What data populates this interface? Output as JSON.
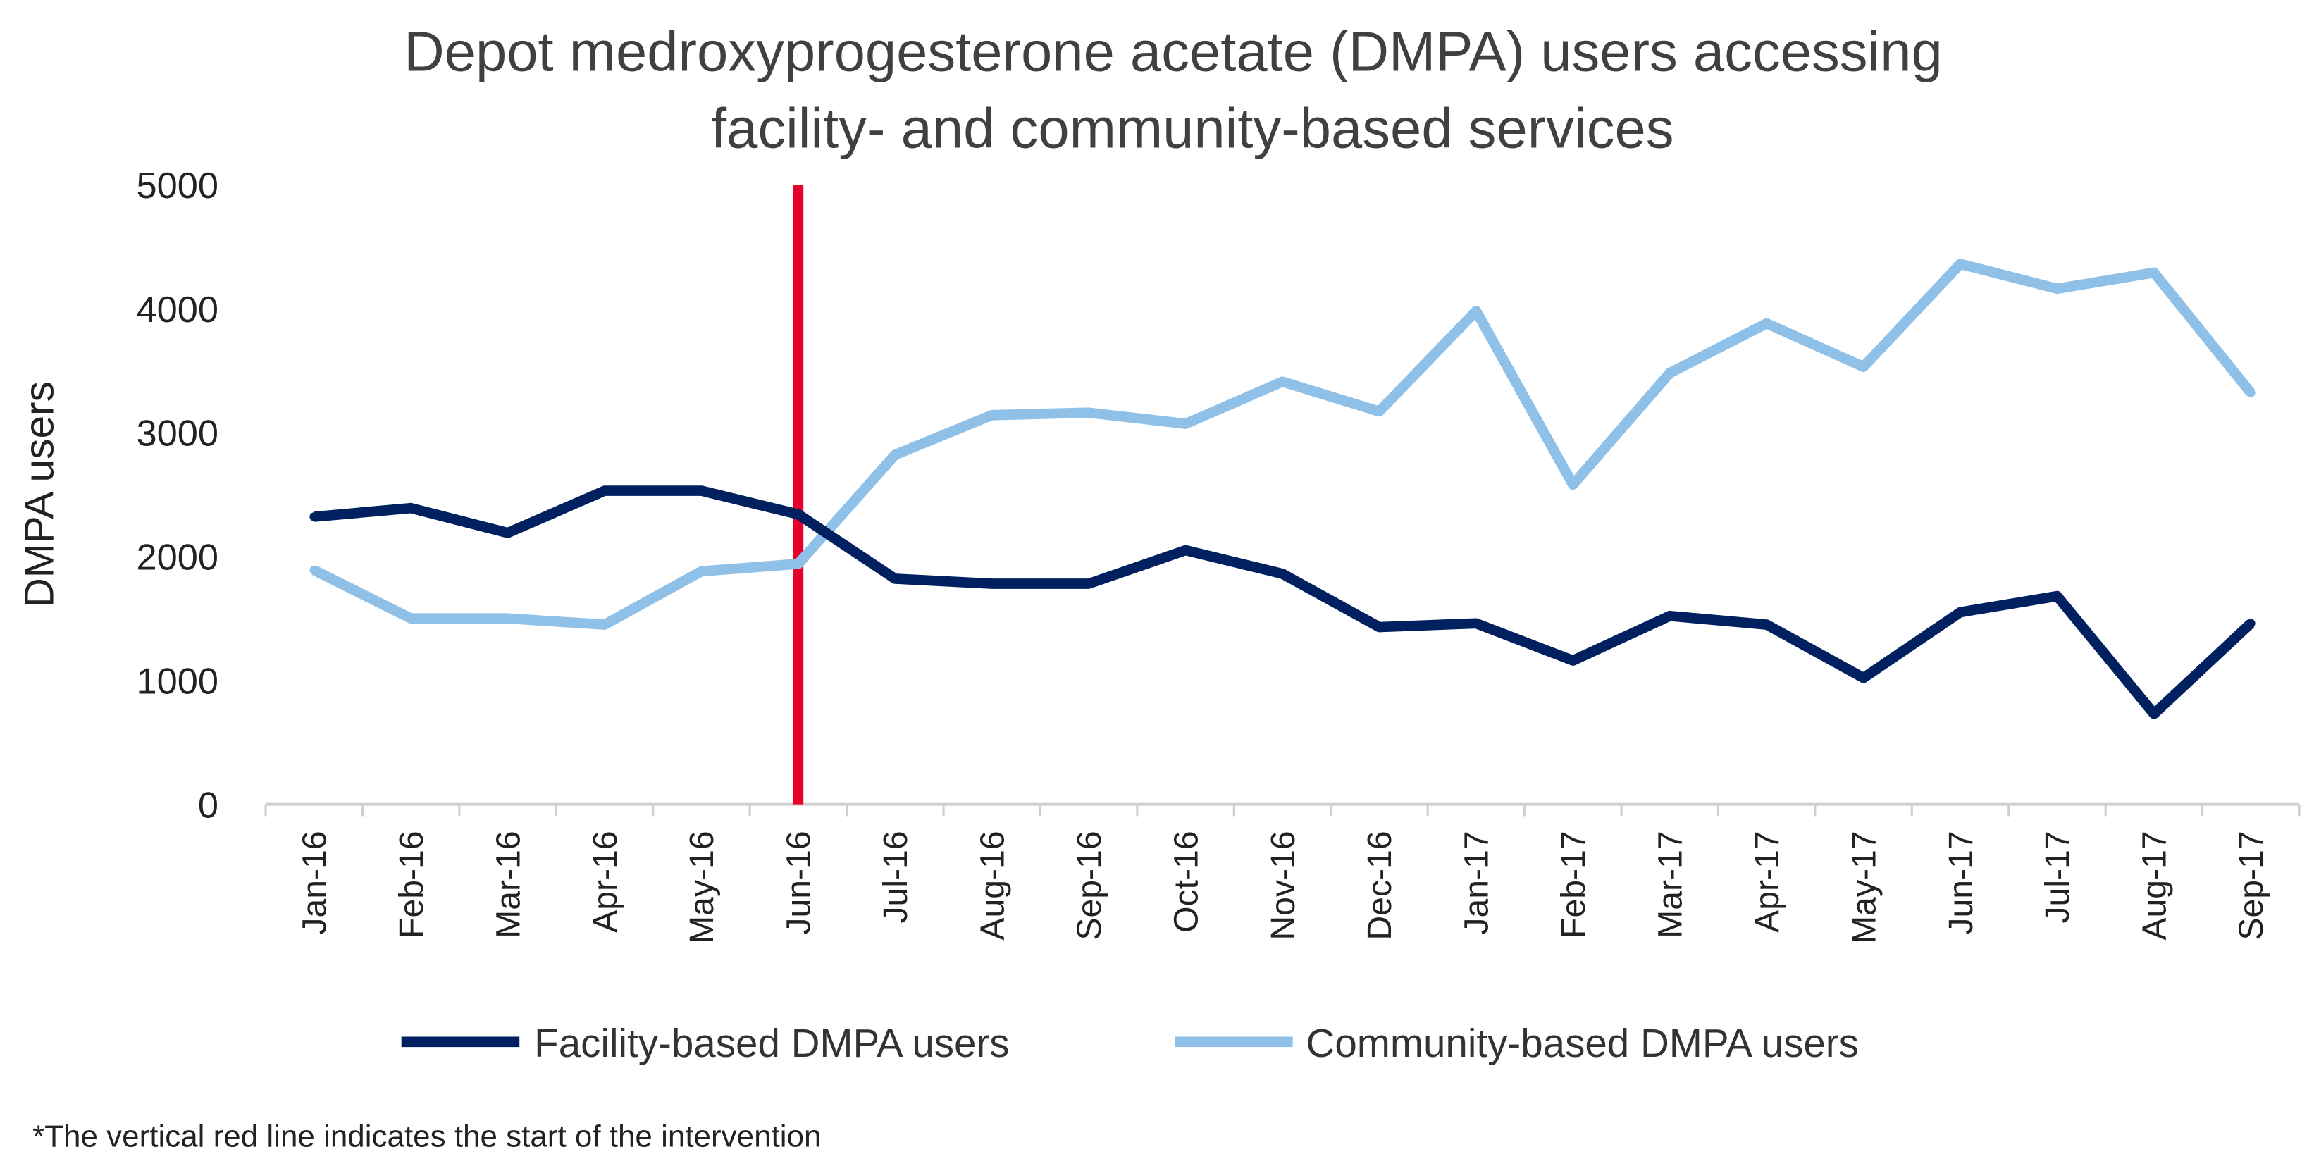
{
  "chart_data": {
    "type": "line",
    "title": [
      "Depot medroxyprogesterone acetate (DMPA) users accessing",
      "facility- and community-based services"
    ],
    "xlabel": "",
    "ylabel": "DMPA users",
    "ylim": [
      0,
      5000
    ],
    "yticks": [
      "0",
      "1000",
      "2000",
      "3000",
      "4000",
      "5000"
    ],
    "grid": false,
    "legend_position": "bottom",
    "categories": [
      "Jan-16",
      "Feb-16",
      "Mar-16",
      "Apr-16",
      "May-16",
      "Jun-16",
      "Jul-16",
      "Aug-16",
      "Sep-16",
      "Oct-16",
      "Nov-16",
      "Dec-16",
      "Jan-17",
      "Feb-17",
      "Mar-17",
      "Apr-17",
      "May-17",
      "Jun-17",
      "Jul-17",
      "Aug-17",
      "Sep-17"
    ],
    "series": [
      {
        "name": "Facility-based DMPA users",
        "color": "#002060",
        "values": [
          2320,
          2390,
          2190,
          2530,
          2530,
          2340,
          1820,
          1780,
          1780,
          2050,
          1860,
          1430,
          1460,
          1160,
          1520,
          1450,
          1020,
          1550,
          1680,
          730,
          1460
        ]
      },
      {
        "name": "Community-based DMPA users",
        "color": "#8fc0e8",
        "values": [
          1890,
          1500,
          1500,
          1450,
          1880,
          1940,
          2820,
          3140,
          3160,
          3070,
          3410,
          3170,
          3980,
          2580,
          3480,
          3880,
          3530,
          4360,
          4160,
          4290,
          3320
        ]
      }
    ],
    "annotation": {
      "category": "Jun-16",
      "color": "#e8002a",
      "type": "vertical-line"
    },
    "footnote": "*The vertical red line indicates the start of the intervention"
  }
}
